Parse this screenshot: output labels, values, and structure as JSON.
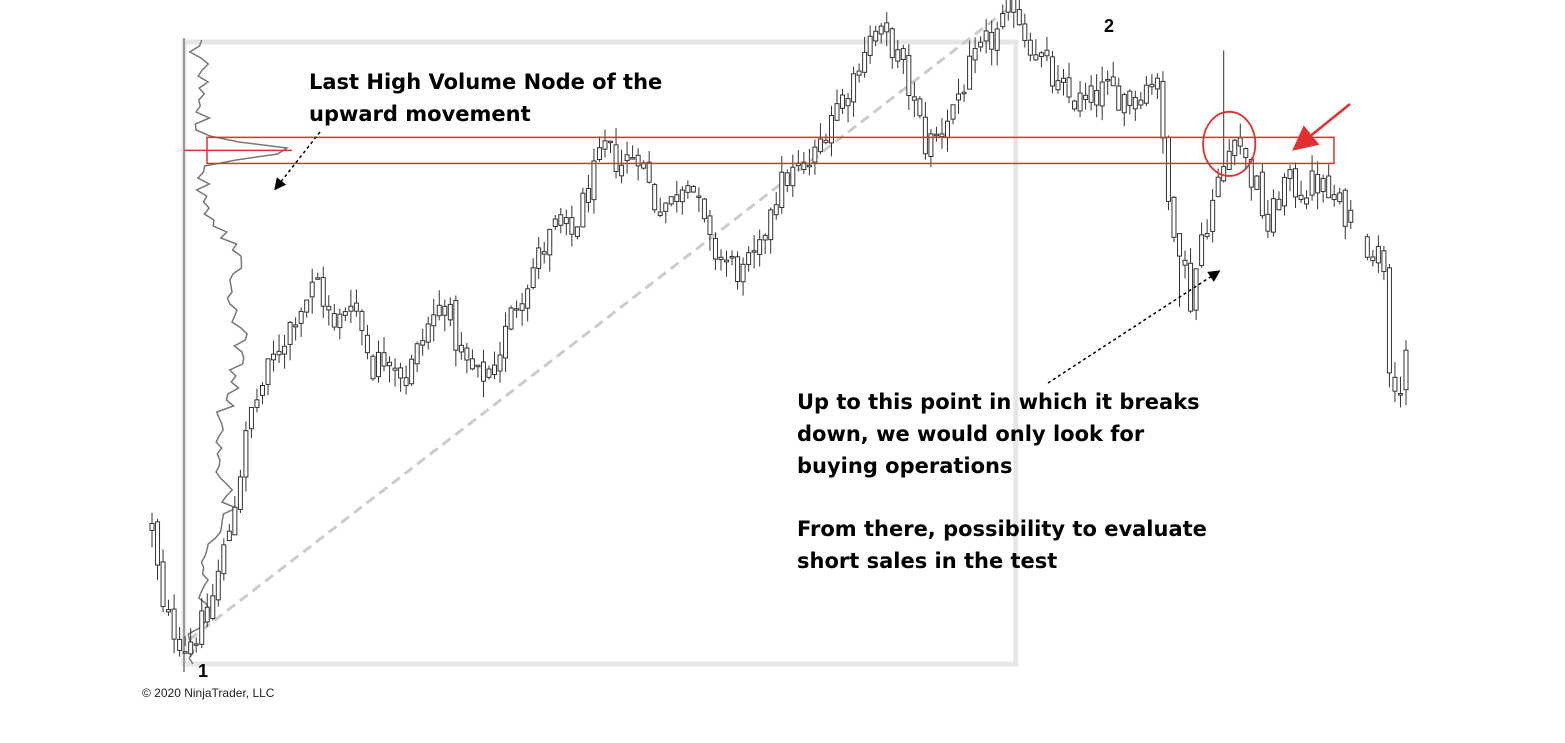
{
  "annotations": {
    "hvn_line1": "Last High Volume Node of the",
    "hvn_line2": "upward movement",
    "break_line1": "Up to this point in which it breaks",
    "break_line2": "down, we would only look for",
    "break_line3": "buying operations",
    "short_line1": "From there, possibility to evaluate",
    "short_line2": "short sales in the test"
  },
  "pivots": {
    "start": "1",
    "end": "2"
  },
  "copyright": "© 2020 NinjaTrader, LLC",
  "colors": {
    "candle_outline": "#333333",
    "zone": "#e03030",
    "profile": "#777777",
    "trend_line": "#cccccc",
    "range_box": "#e6e6e6"
  },
  "chart_data": {
    "type": "candlestick",
    "title": "",
    "xlabel": "",
    "ylabel": "",
    "grid": false,
    "legend": "none",
    "ylim": [
      0,
      100
    ],
    "price_path_anchors": [
      [
        0,
        22
      ],
      [
        2,
        9
      ],
      [
        6,
        4
      ],
      [
        10,
        8
      ],
      [
        14,
        22
      ],
      [
        18,
        40
      ],
      [
        22,
        48
      ],
      [
        26,
        55
      ],
      [
        30,
        60
      ],
      [
        33,
        52
      ],
      [
        36,
        58
      ],
      [
        40,
        47
      ],
      [
        43,
        49
      ],
      [
        46,
        45
      ],
      [
        50,
        53
      ],
      [
        53,
        57
      ],
      [
        56,
        48
      ],
      [
        59,
        45
      ],
      [
        62,
        47
      ],
      [
        66,
        57
      ],
      [
        69,
        62
      ],
      [
        73,
        68
      ],
      [
        76,
        67
      ],
      [
        79,
        74
      ],
      [
        82,
        80
      ],
      [
        85,
        78
      ],
      [
        88,
        80
      ],
      [
        91,
        72
      ],
      [
        94,
        72
      ],
      [
        97,
        77
      ],
      [
        99,
        71
      ],
      [
        101,
        65
      ],
      [
        104,
        63
      ],
      [
        107,
        61
      ],
      [
        110,
        64
      ],
      [
        112,
        72
      ],
      [
        115,
        76
      ],
      [
        118,
        77
      ],
      [
        120,
        79
      ],
      [
        123,
        86
      ],
      [
        126,
        89
      ],
      [
        129,
        96
      ],
      [
        131,
        98
      ],
      [
        134,
        96
      ],
      [
        136,
        92
      ],
      [
        138,
        87
      ],
      [
        140,
        81
      ],
      [
        142,
        82
      ],
      [
        145,
        87
      ],
      [
        148,
        92
      ],
      [
        151,
        96
      ],
      [
        154,
        99
      ],
      [
        156,
        103
      ],
      [
        158,
        98
      ],
      [
        161,
        94
      ],
      [
        164,
        89
      ],
      [
        166,
        88
      ],
      [
        169,
        87
      ],
      [
        172,
        89
      ],
      [
        174,
        89
      ],
      [
        177,
        88
      ],
      [
        180,
        90
      ],
      [
        182,
        92
      ],
      [
        183,
        80
      ],
      [
        184,
        72
      ],
      [
        186,
        66
      ],
      [
        188,
        57
      ],
      [
        190,
        67
      ],
      [
        192,
        72
      ],
      [
        195,
        80
      ],
      [
        196,
        84
      ],
      [
        198,
        78
      ],
      [
        200,
        74
      ],
      [
        202,
        68
      ],
      [
        205,
        75
      ],
      [
        208,
        74
      ],
      [
        211,
        75
      ],
      [
        214,
        72
      ],
      [
        217,
        70
      ],
      [
        220,
        66
      ],
      [
        223,
        63
      ],
      [
        224,
        48
      ],
      [
        226,
        43
      ],
      [
        227,
        47
      ]
    ],
    "swing_points": [
      {
        "label": "1",
        "bar": 6,
        "price": 4
      },
      {
        "label": "2",
        "bar": 156,
        "price": 103
      }
    ],
    "high_volume_node_zone": {
      "low": 78,
      "high": 82
    },
    "retest_circle": {
      "bar_from": 191,
      "bar_to": 199,
      "price_low": 77,
      "price_high": 85
    }
  }
}
